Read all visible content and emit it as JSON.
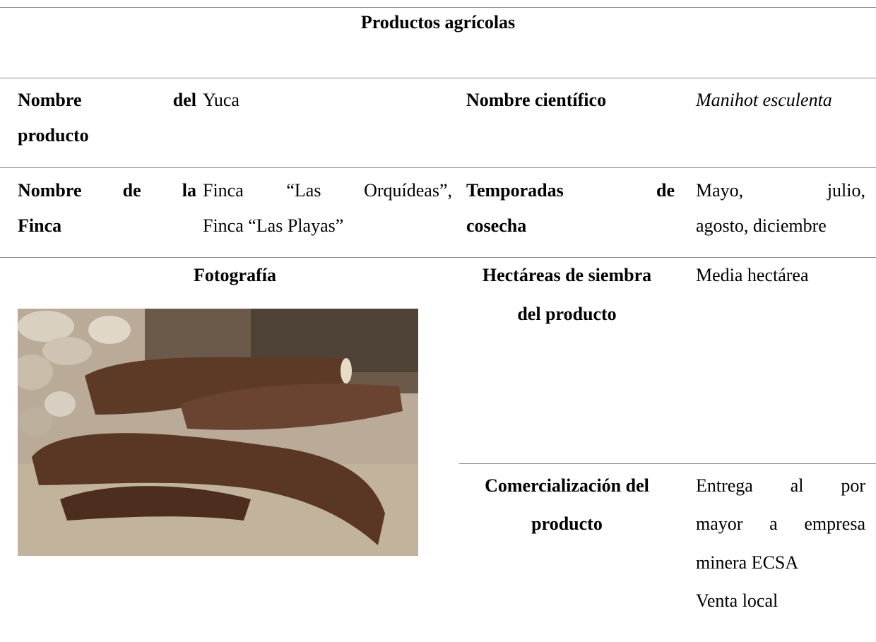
{
  "title": "Productos agrícolas",
  "product_name": {
    "label": [
      "Nombre del",
      "producto"
    ],
    "value": "Yuca"
  },
  "scientific_name": {
    "label": "Nombre científico",
    "value": "Manihot esculenta"
  },
  "farm": {
    "label": [
      "Nombre de la",
      "Finca"
    ],
    "value": [
      "Finca “Las Orquídeas”,",
      "Finca “Las Playas”"
    ]
  },
  "harvest": {
    "label": [
      "Temporadas de",
      "cosecha"
    ],
    "value": [
      "Mayo, julio,",
      "agosto, diciembre"
    ]
  },
  "photo": {
    "label": "Fotografía"
  },
  "hectares": {
    "label": [
      "Hectáreas de siembra",
      "del producto"
    ],
    "value": "Media hectárea"
  },
  "commercialization": {
    "label": [
      "Comercialización del",
      "producto"
    ],
    "value": [
      "Entrega al por",
      "mayor a empresa",
      "minera ECSA"
    ],
    "value_extra": "Venta local"
  }
}
